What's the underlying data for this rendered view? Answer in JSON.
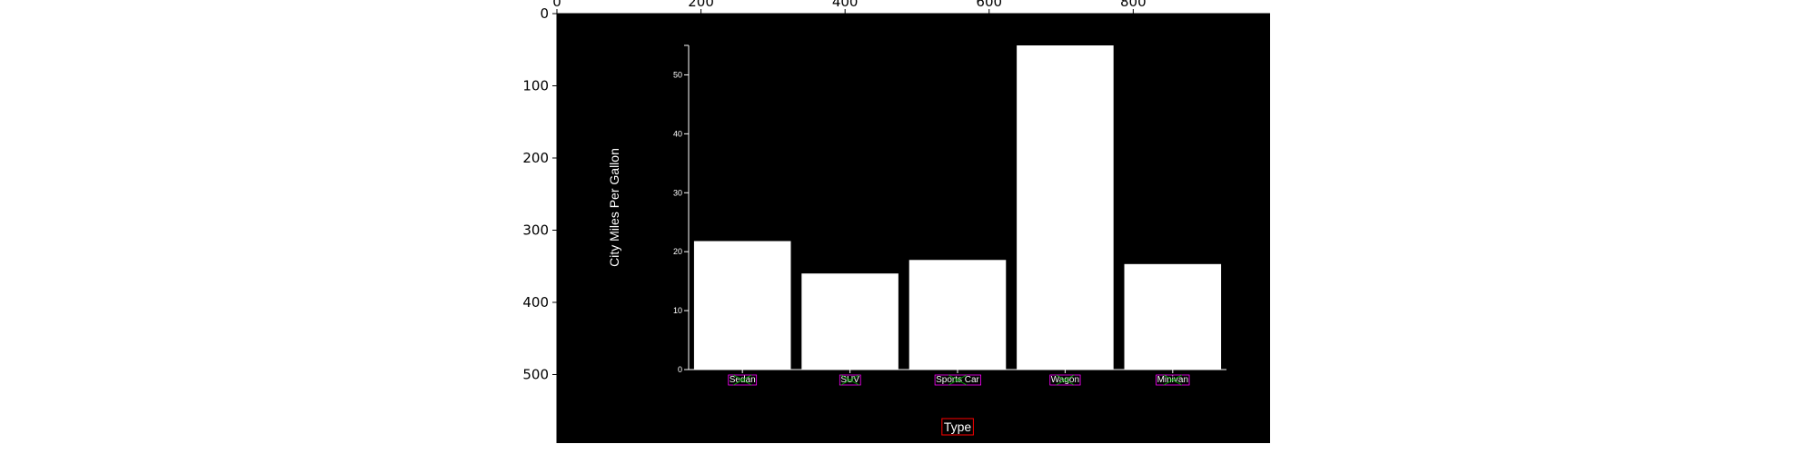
{
  "outer_axes": {
    "x_ticks": [
      "0",
      "200",
      "400",
      "600",
      "800"
    ],
    "y_ticks": [
      "0",
      "100",
      "200",
      "300",
      "400",
      "500"
    ],
    "xlim": [
      0,
      990
    ],
    "ylim": [
      595,
      0
    ]
  },
  "chart_data": {
    "type": "bar",
    "title": "",
    "xlabel": "Type",
    "ylabel": "City Miles Per Gallon",
    "categories": [
      "Sedan",
      "SUV",
      "Sports Car",
      "Wagon",
      "Minivan"
    ],
    "values": [
      21.8,
      16.3,
      18.6,
      55.0,
      17.9
    ],
    "ylim": [
      0,
      55
    ],
    "yticks": [
      0,
      10,
      20,
      30,
      40,
      50
    ],
    "ytick_labels": [
      "0",
      "10",
      "20",
      "30",
      "40",
      "50"
    ],
    "grid": false,
    "colors": {
      "background": "#000000",
      "bar": "#ffffff",
      "text": "#ffffff",
      "annotation_box": "#ff0000"
    }
  }
}
